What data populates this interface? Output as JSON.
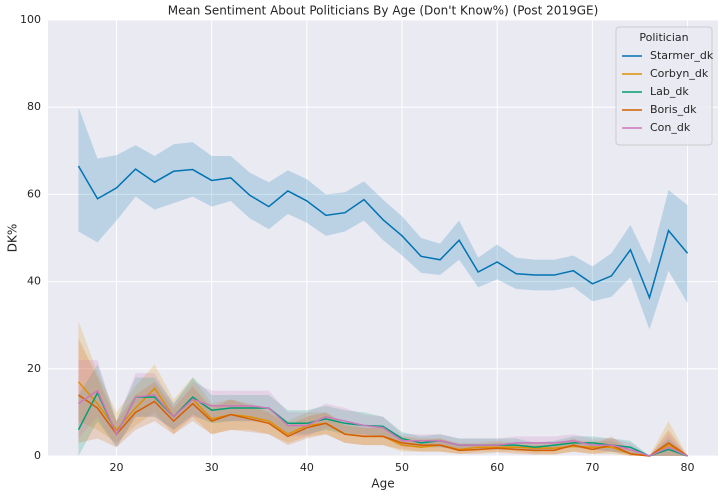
{
  "chart_data": {
    "type": "line",
    "title": "Mean Sentiment About Politicians By Age (Don't Know%) (Post 2019GE)",
    "x_label": "Age",
    "y_label": "DK%",
    "legend_title": "Politician",
    "legend_position": "upper right",
    "grid": true,
    "x": [
      16,
      18,
      20,
      22,
      24,
      26,
      28,
      30,
      32,
      34,
      36,
      38,
      40,
      42,
      44,
      46,
      48,
      50,
      52,
      54,
      56,
      58,
      60,
      62,
      64,
      66,
      68,
      70,
      72,
      74,
      76,
      78,
      80
    ],
    "xlim": [
      12.8,
      83.2
    ],
    "xticks": [
      20,
      30,
      40,
      50,
      60,
      70,
      80
    ],
    "ylim": [
      0,
      100
    ],
    "yticks": [
      0,
      20,
      40,
      60,
      80,
      100
    ],
    "series": [
      {
        "name": "Starmer_dk",
        "color": "#0173b2",
        "values": [
          66.5,
          59,
          61.5,
          65.8,
          62.8,
          65.3,
          65.7,
          63.2,
          63.8,
          59.8,
          57.2,
          60.8,
          58.5,
          55.2,
          55.8,
          58.8,
          54.2,
          50.5,
          45.8,
          45,
          49.5,
          42.2,
          44.5,
          41.8,
          41.5,
          41.5,
          42.5,
          39.5,
          41.3,
          47.3,
          36.3,
          51.7,
          46.5
        ],
        "lower": [
          51.5,
          49,
          54,
          59.5,
          56.5,
          58,
          59.5,
          57.2,
          58.5,
          54.5,
          52,
          55.5,
          53.5,
          50.5,
          51.5,
          54,
          49.5,
          46,
          42,
          41.5,
          45,
          38.7,
          40.5,
          38.3,
          38,
          38,
          38.8,
          35.5,
          36.5,
          41,
          29,
          42.5,
          35
        ],
        "upper": [
          80,
          68.2,
          69,
          71.3,
          68.8,
          71.5,
          72,
          68.8,
          68.8,
          65,
          62.8,
          65.5,
          63.5,
          60,
          60.5,
          63,
          58.8,
          55,
          50,
          48.7,
          54,
          45.5,
          48.5,
          45.5,
          45,
          45,
          46,
          43.5,
          46.5,
          53,
          44,
          61,
          57.5
        ]
      },
      {
        "name": "Corbyn_dk",
        "color": "#de8f05",
        "values": [
          17,
          12,
          6,
          11,
          15.5,
          9,
          13,
          8.5,
          9.5,
          9,
          8,
          5,
          7,
          7.5,
          5,
          4.5,
          4.5,
          2.5,
          2,
          2.5,
          1.5,
          2,
          2,
          2,
          1.8,
          1.8,
          2.2,
          2,
          2,
          0.5,
          0,
          2.5,
          0
        ],
        "lower": [
          8,
          6,
          3,
          7,
          10,
          5,
          9,
          5,
          6,
          6,
          5,
          3,
          4.5,
          5,
          3,
          2.5,
          2.5,
          1,
          1,
          1,
          0.5,
          1,
          1,
          1,
          0.5,
          0.5,
          1,
          0.5,
          0.5,
          0,
          0,
          0,
          0
        ],
        "upper": [
          31,
          19,
          10,
          16,
          21,
          13,
          18,
          12,
          13,
          12,
          11,
          8,
          10,
          10,
          7.5,
          6.5,
          6.5,
          4,
          3.5,
          4,
          3,
          3,
          3.5,
          3,
          3,
          3,
          3.5,
          3.5,
          3.5,
          1.5,
          0,
          8,
          0
        ]
      },
      {
        "name": "Lab_dk",
        "color": "#029e73",
        "values": [
          6,
          14.5,
          5,
          13.5,
          13.5,
          9,
          13.5,
          10.5,
          11,
          11,
          11,
          7.5,
          7.5,
          8.5,
          7.5,
          7,
          6.8,
          4,
          3,
          3.5,
          2.5,
          2.5,
          2.5,
          2.5,
          2,
          2.5,
          3,
          3,
          2.5,
          2,
          0,
          1.5,
          0
        ],
        "lower": [
          0,
          8,
          2,
          9,
          9,
          6,
          9.5,
          7.5,
          8,
          8,
          8,
          5,
          5,
          6,
          5,
          5,
          4.5,
          2.5,
          2,
          2,
          1.5,
          1.5,
          1.5,
          1.5,
          1,
          1.5,
          2,
          1.5,
          1,
          0.5,
          0,
          0,
          0
        ],
        "upper": [
          14,
          21,
          8,
          18,
          18,
          12,
          18,
          14,
          14,
          14,
          14,
          10.5,
          10.5,
          11.5,
          10.5,
          10,
          9,
          5.5,
          4.5,
          5,
          4,
          4,
          4,
          4,
          3,
          3.5,
          4.5,
          4.5,
          4,
          3.5,
          0,
          4,
          0
        ]
      },
      {
        "name": "Boris_dk",
        "color": "#d55e00",
        "values": [
          14,
          11,
          5,
          10,
          12.5,
          8,
          12,
          8,
          9.5,
          8.5,
          7.5,
          4.5,
          6.5,
          7.5,
          5,
          4.5,
          4.5,
          3,
          2.5,
          2.5,
          1.3,
          1.5,
          1.8,
          1.5,
          1.3,
          1.3,
          2.5,
          1.5,
          2.5,
          0.5,
          0,
          3,
          0
        ],
        "lower": [
          3,
          4,
          2,
          6,
          8,
          5,
          8,
          5,
          6,
          5.5,
          5,
          2.5,
          4,
          5,
          3,
          2.5,
          2.5,
          1.5,
          1,
          1,
          0.5,
          0.5,
          0.8,
          0.5,
          0.3,
          0.3,
          1,
          0.5,
          1,
          0,
          0,
          0,
          0
        ],
        "upper": [
          27,
          18,
          8,
          14,
          17,
          11,
          16,
          11,
          13,
          11.5,
          10,
          7,
          9,
          10,
          7,
          6.5,
          6.5,
          4.5,
          4,
          4,
          2.5,
          2.5,
          3,
          2.5,
          2.5,
          2.5,
          4,
          2.5,
          4.5,
          1.5,
          0,
          6,
          0
        ]
      },
      {
        "name": "Con_dk",
        "color": "#cc78bc",
        "values": [
          12,
          15,
          5,
          13.5,
          14,
          9,
          13,
          11.5,
          11.5,
          11.5,
          11,
          7,
          7,
          9,
          8,
          7,
          6.5,
          3.5,
          3.5,
          3.5,
          2.5,
          2.5,
          2.5,
          3,
          3,
          3,
          3.5,
          2.5,
          2.5,
          1.5,
          0,
          2,
          0
        ],
        "lower": [
          4,
          9,
          2,
          9,
          9,
          6,
          9,
          8,
          8,
          8,
          7.5,
          4.5,
          4.5,
          6.5,
          5.5,
          4.5,
          4.5,
          2,
          2,
          2,
          1.5,
          1.5,
          1.5,
          1.5,
          1.5,
          1.5,
          2,
          1.5,
          1,
          0.5,
          0,
          0,
          0
        ],
        "upper": [
          22,
          22,
          8,
          19,
          19,
          12,
          17,
          15,
          15,
          15,
          15,
          10,
          10,
          12,
          11,
          9.5,
          9,
          5,
          5,
          5,
          4,
          4,
          4,
          4.5,
          4.5,
          4.5,
          5,
          4,
          4,
          3,
          0,
          5,
          0
        ]
      }
    ]
  }
}
